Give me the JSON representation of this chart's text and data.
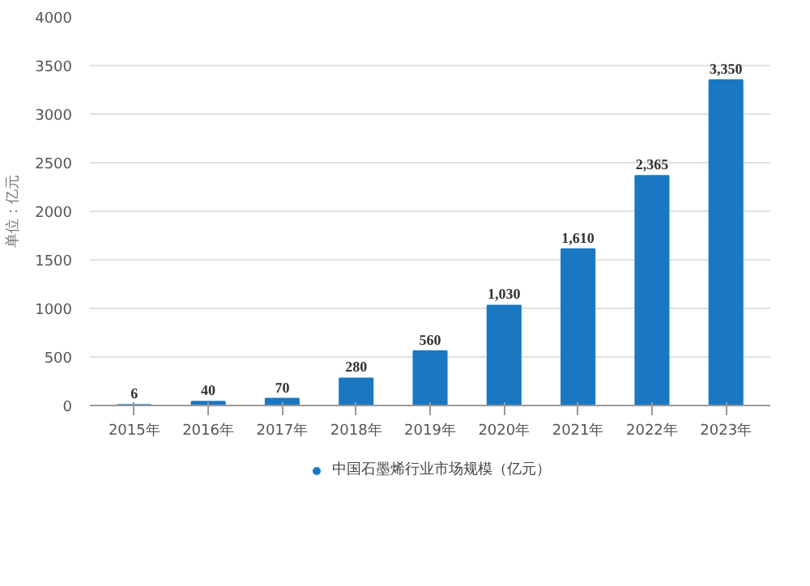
{
  "chart_data": {
    "type": "bar",
    "ylabel": "单位：亿元",
    "categories": [
      "2015年",
      "2016年",
      "2017年",
      "2018年",
      "2019年",
      "2020年",
      "2021年",
      "2022年",
      "2023年"
    ],
    "series": [
      {
        "name": "中国石墨烯行业市场规模（亿元）",
        "color": "#1a78c2",
        "values": [
          6,
          40,
          70,
          280,
          560,
          1030,
          1610,
          2365,
          3350
        ],
        "value_labels": [
          "6",
          "40",
          "70",
          "280",
          "560",
          "1,030",
          "1,610",
          "2,365",
          "3,350"
        ]
      }
    ],
    "ylim": [
      0,
      4000
    ],
    "yticks": [
      0,
      500,
      1000,
      1500,
      2000,
      2500,
      3000,
      3500,
      4000
    ],
    "grid": "y",
    "legend": "bottom"
  }
}
